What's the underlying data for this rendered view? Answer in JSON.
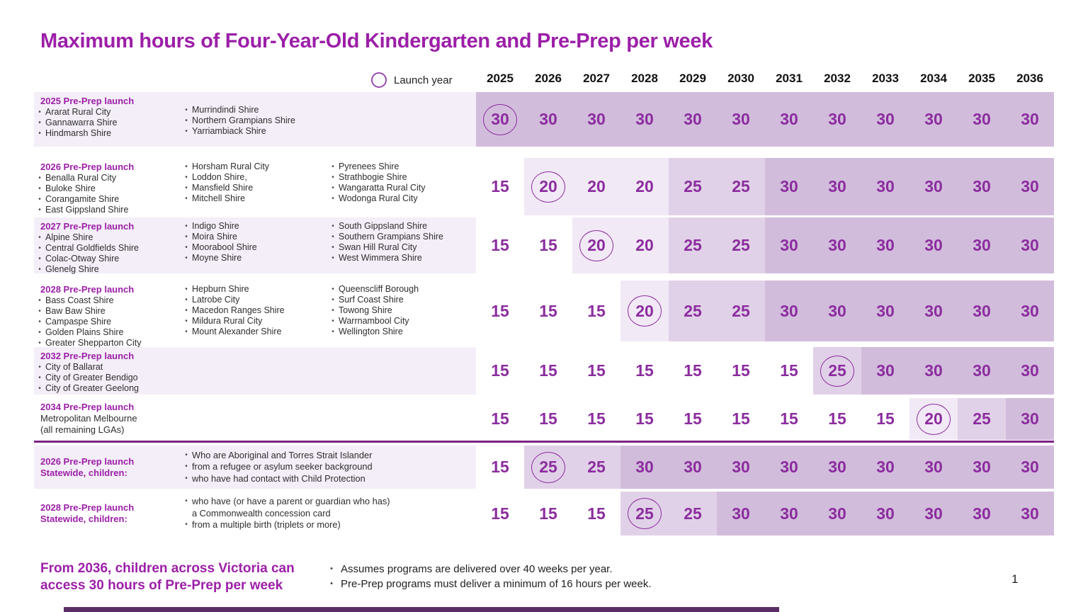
{
  "title": "Maximum hours of Four-Year-Old Kindergarten and Pre-Prep per week",
  "legend": {
    "label": "Launch year"
  },
  "years": [
    "2025",
    "2026",
    "2027",
    "2028",
    "2029",
    "2030",
    "2031",
    "2032",
    "2033",
    "2034",
    "2035",
    "2036"
  ],
  "palette": {
    "title_purple": "#9c1fa8",
    "value_purple": "#8b2d9e",
    "label_bg": "#f4eef8",
    "tier15": "#ffffff",
    "tier20": "#f2e9f6",
    "tier25": "#e1d1e8",
    "tier30": "#d2bcdc",
    "divider": "#7b2382",
    "bottom_bar": "#5b2d66"
  },
  "table": {
    "rows": [
      {
        "launch_label": "2025 Pre-Prep launch",
        "label_bg": "lavender",
        "columns": [
          [
            "Ararat Rural City",
            "Gannawarra Shire",
            "Hindmarsh Shire"
          ],
          [
            "Murrindindi Shire",
            "Northern Grampians Shire",
            "Yarriambiack Shire"
          ]
        ],
        "values": [
          30,
          30,
          30,
          30,
          30,
          30,
          30,
          30,
          30,
          30,
          30,
          30
        ],
        "circled_index": 0
      },
      {
        "launch_label": "2026 Pre-Prep launch",
        "label_bg": "white",
        "columns": [
          [
            "Benalla Rural City",
            "Buloke Shire",
            "Corangamite Shire",
            "East Gippsland Shire"
          ],
          [
            "Horsham Rural City",
            "Loddon Shire,",
            "Mansfield Shire",
            "Mitchell Shire"
          ],
          [
            "Pyrenees Shire",
            "Strathbogie Shire",
            "Wangaratta Rural City",
            "Wodonga Rural City"
          ]
        ],
        "values": [
          15,
          20,
          20,
          20,
          25,
          25,
          30,
          30,
          30,
          30,
          30,
          30
        ],
        "circled_index": 1
      },
      {
        "launch_label": "2027 Pre-Prep launch",
        "label_bg": "lavender",
        "columns": [
          [
            "Alpine Shire",
            "Central Goldfields Shire",
            "Colac-Otway Shire",
            "Glenelg Shire"
          ],
          [
            "Indigo Shire",
            "Moira Shire",
            "Moorabool Shire",
            "Moyne Shire"
          ],
          [
            "South Gippsland Shire",
            "Southern Grampians Shire",
            "Swan Hill Rural City",
            "West Wimmera Shire"
          ]
        ],
        "values": [
          15,
          15,
          20,
          20,
          25,
          25,
          30,
          30,
          30,
          30,
          30,
          30
        ],
        "circled_index": 2
      },
      {
        "launch_label": "2028 Pre-Prep launch",
        "label_bg": "white",
        "columns": [
          [
            "Bass Coast Shire",
            "Baw Baw Shire",
            "Campaspe Shire",
            "Golden Plains Shire",
            "Greater Shepparton City"
          ],
          [
            "Hepburn Shire",
            "Latrobe City",
            "Macedon Ranges Shire",
            "Mildura Rural City",
            "Mount Alexander Shire"
          ],
          [
            "Queenscliff Borough",
            "Surf Coast Shire",
            "Towong Shire",
            "Warrnambool City",
            "Wellington Shire"
          ]
        ],
        "values": [
          15,
          15,
          15,
          20,
          25,
          25,
          30,
          30,
          30,
          30,
          30,
          30
        ],
        "circled_index": 3
      },
      {
        "launch_label": "2032 Pre-Prep launch",
        "label_bg": "lavender",
        "columns": [
          [
            "City of Ballarat",
            "City of Greater Bendigo",
            "City of Greater Geelong"
          ]
        ],
        "values": [
          15,
          15,
          15,
          15,
          15,
          15,
          15,
          25,
          30,
          30,
          30,
          30
        ],
        "circled_index": 7
      },
      {
        "launch_label": "2034 Pre-Prep launch",
        "label_bg": "white",
        "plain_lines": [
          "Metropolitan Melbourne",
          "(all remaining LGAs)"
        ],
        "values": [
          15,
          15,
          15,
          15,
          15,
          15,
          15,
          15,
          15,
          20,
          25,
          30
        ],
        "circled_index": 9
      },
      {
        "launch_label": "2026 Pre-Prep launch",
        "launch_label2": "Statewide, children:",
        "label_bg": "lavender",
        "statewide": true,
        "bullets": [
          [
            "Who are Aboriginal and Torres Strait Islander"
          ],
          [
            "from a refugee or asylum seeker background"
          ],
          [
            "who have had contact with Child Protection"
          ]
        ],
        "values": [
          15,
          25,
          25,
          30,
          30,
          30,
          30,
          30,
          30,
          30,
          30,
          30
        ],
        "circled_index": 1
      },
      {
        "launch_label": "2028 Pre-Prep launch",
        "launch_label2": "Statewide, children:",
        "label_bg": "white",
        "statewide": true,
        "bullets": [
          [
            "who have (or have a parent or guardian who has)",
            "a Commonwealth concession card"
          ],
          [
            "from a multiple birth (triplets or more)"
          ]
        ],
        "values": [
          15,
          15,
          15,
          25,
          25,
          30,
          30,
          30,
          30,
          30,
          30,
          30
        ],
        "circled_index": 3
      }
    ]
  },
  "footer": {
    "highlight_line1": "From 2036, children across Victoria can",
    "highlight_line2": "access 30 hours of Pre-Prep per week",
    "notes": [
      "Assumes programs are delivered over 40 weeks per year.",
      "Pre-Prep programs must deliver a minimum of 16 hours per week."
    ],
    "page_number": "1"
  }
}
